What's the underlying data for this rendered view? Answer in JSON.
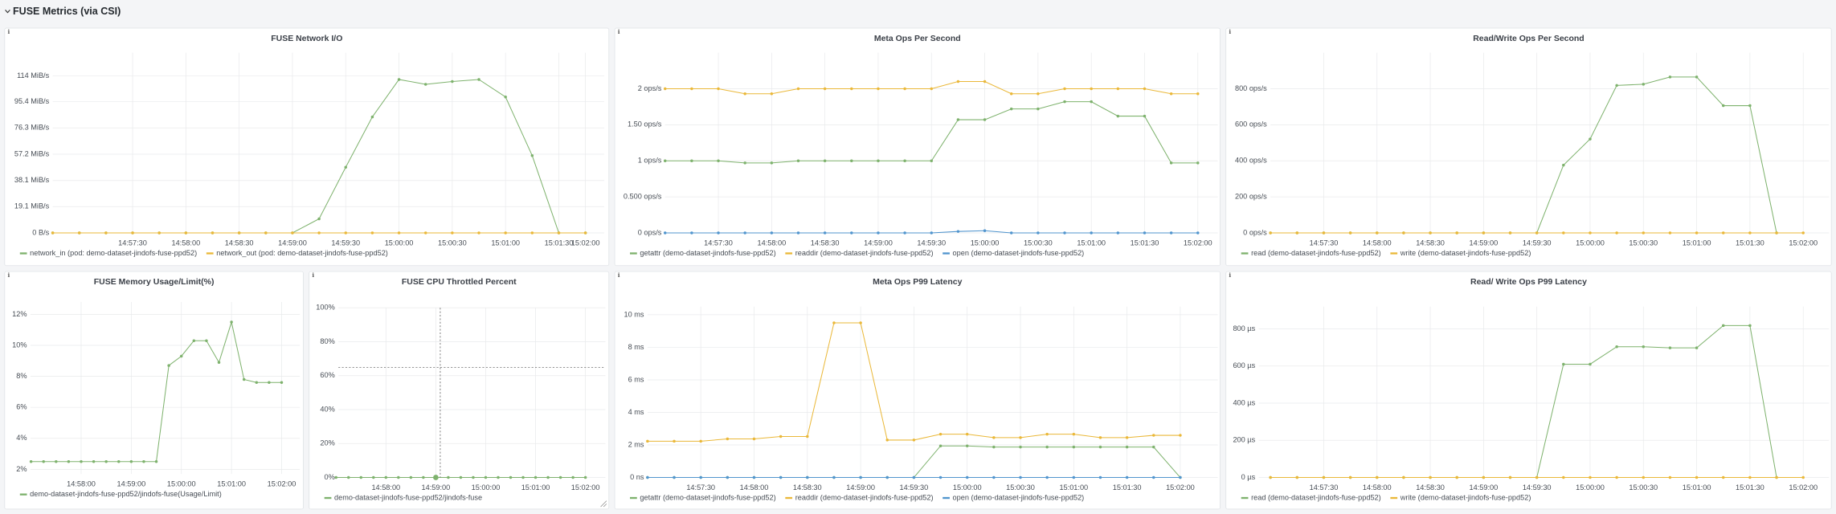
{
  "header": {
    "title": "FUSE Metrics (via CSI)"
  },
  "chart_data": [
    {
      "type": "line",
      "title": "FUSE Network I/O",
      "categories": [
        null,
        null,
        null,
        "14:57:30",
        null,
        "14:58:00",
        null,
        "14:58:30",
        null,
        "14:59:00",
        null,
        "14:59:30",
        null,
        "15:00:00",
        null,
        "15:00:30",
        null,
        "15:01:00",
        null,
        "15:01:30",
        "15:02:00"
      ],
      "ylim": [
        0,
        131
      ],
      "yticks": [
        {
          "value": 0,
          "label": "0 B/s"
        },
        {
          "value": 19.1,
          "label": "19.1 MiB/s"
        },
        {
          "value": 38.1,
          "label": "38.1 MiB/s"
        },
        {
          "value": 57.2,
          "label": "57.2 MiB/s"
        },
        {
          "value": 76.3,
          "label": "76.3 MiB/s"
        },
        {
          "value": 95.4,
          "label": "95.4 MiB/s"
        },
        {
          "value": 114,
          "label": "114 MiB/s"
        }
      ],
      "grid": true,
      "series": [
        {
          "name": "network_in (pod: demo-dataset-jindofs-fuse-ppd52)",
          "color": "#7eb26d",
          "values": [
            0,
            0,
            0,
            0,
            0,
            0,
            0,
            0,
            0,
            0,
            10.2,
            47.7,
            84.3,
            111.5,
            108,
            110,
            111.5,
            98.8,
            56.2,
            0,
            0
          ]
        },
        {
          "name": "network_out (pod: demo-dataset-jindofs-fuse-ppd52)",
          "color": "#eab839",
          "values": [
            0,
            0,
            0,
            0,
            0,
            0,
            0,
            0,
            0,
            0,
            0,
            0,
            0,
            0,
            0,
            0,
            0,
            0,
            0,
            0,
            0
          ]
        }
      ]
    },
    {
      "type": "line",
      "title": "Meta Ops Per Second",
      "categories": [
        null,
        null,
        "14:57:30",
        null,
        "14:58:00",
        null,
        "14:58:30",
        null,
        "14:59:00",
        null,
        "14:59:30",
        null,
        "15:00:00",
        null,
        "15:00:30",
        null,
        "15:01:00",
        null,
        "15:01:30",
        null,
        "15:02:00"
      ],
      "ylim": [
        0,
        2.5
      ],
      "yticks": [
        {
          "value": 0,
          "label": "0 ops/s"
        },
        {
          "value": 0.5,
          "label": "0.500 ops/s"
        },
        {
          "value": 1,
          "label": "1 ops/s"
        },
        {
          "value": 1.5,
          "label": "1.50 ops/s"
        },
        {
          "value": 2,
          "label": "2 ops/s"
        }
      ],
      "grid": true,
      "series": [
        {
          "name": "getattr (demo-dataset-jindofs-fuse-ppd52)",
          "color": "#7eb26d",
          "values": [
            1,
            1,
            1,
            0.97,
            0.97,
            1,
            1,
            1,
            1,
            1,
            1,
            1.57,
            1.57,
            1.72,
            1.72,
            1.82,
            1.82,
            1.62,
            1.62,
            0.97,
            0.97
          ]
        },
        {
          "name": "readdir (demo-dataset-jindofs-fuse-ppd52)",
          "color": "#eab839",
          "values": [
            2,
            2,
            2,
            1.93,
            1.93,
            2,
            2,
            2,
            2,
            2,
            2,
            2.1,
            2.1,
            1.93,
            1.93,
            2,
            2,
            2,
            2,
            1.93,
            1.93
          ]
        },
        {
          "name": "open (demo-dataset-jindofs-fuse-ppd52)",
          "color": "#5195ce",
          "values": [
            0,
            0,
            0,
            0,
            0,
            0,
            0,
            0,
            0,
            0,
            0,
            0.02,
            0.03,
            0,
            0,
            0,
            0,
            0,
            0,
            0,
            0
          ]
        }
      ]
    },
    {
      "type": "line",
      "title": "Read/Write Ops Per Second",
      "categories": [
        null,
        null,
        "14:57:30",
        null,
        "14:58:00",
        null,
        "14:58:30",
        null,
        "14:59:00",
        null,
        "14:59:30",
        null,
        "15:00:00",
        null,
        "15:00:30",
        null,
        "15:01:00",
        null,
        "15:01:30",
        null,
        "15:02:00"
      ],
      "ylim": [
        0,
        1000
      ],
      "yticks": [
        {
          "value": 0,
          "label": "0 ops/s"
        },
        {
          "value": 200,
          "label": "200 ops/s"
        },
        {
          "value": 400,
          "label": "400 ops/s"
        },
        {
          "value": 600,
          "label": "600 ops/s"
        },
        {
          "value": 800,
          "label": "800 ops/s"
        }
      ],
      "grid": true,
      "series": [
        {
          "name": "read (demo-dataset-jindofs-fuse-ppd52)",
          "color": "#7eb26d",
          "values": [
            0,
            0,
            0,
            0,
            0,
            0,
            0,
            0,
            0,
            0,
            0,
            376,
            521,
            818,
            825,
            865,
            865,
            706,
            706,
            0,
            null
          ]
        },
        {
          "name": "write (demo-dataset-jindofs-fuse-ppd52)",
          "color": "#eab839",
          "values": [
            0,
            0,
            0,
            0,
            0,
            0,
            0,
            0,
            0,
            0,
            0,
            0,
            0,
            0,
            0,
            0,
            0,
            0,
            0,
            0,
            0
          ]
        }
      ]
    },
    {
      "type": "line",
      "title": "FUSE Memory Usage/Limit(%)",
      "categories": [
        null,
        null,
        null,
        null,
        "14:58:00",
        null,
        null,
        null,
        "14:59:00",
        null,
        null,
        null,
        "15:00:00",
        null,
        null,
        null,
        "15:01:00",
        null,
        null,
        null,
        "15:02:00"
      ],
      "ylim": [
        1.7,
        12.8
      ],
      "yticks": [
        {
          "value": 2,
          "label": "2%"
        },
        {
          "value": 4,
          "label": "4%"
        },
        {
          "value": 6,
          "label": "6%"
        },
        {
          "value": 8,
          "label": "8%"
        },
        {
          "value": 10,
          "label": "10%"
        },
        {
          "value": 12,
          "label": "12%"
        }
      ],
      "grid": true,
      "series": [
        {
          "name": "demo-dataset-jindofs-fuse-ppd52/jindofs-fuse(Usage/Limit)",
          "color": "#7eb26d",
          "values": [
            2.5,
            2.5,
            2.5,
            2.5,
            2.5,
            2.5,
            2.5,
            2.5,
            2.5,
            2.5,
            2.5,
            8.7,
            9.3,
            10.3,
            10.3,
            8.9,
            11.5,
            7.8,
            7.6,
            7.6,
            7.6
          ]
        }
      ]
    },
    {
      "type": "line",
      "title": "FUSE CPU Throttled Percent",
      "categories": [
        null,
        null,
        null,
        null,
        "14:58:00",
        null,
        null,
        null,
        "14:59:00",
        null,
        null,
        null,
        "15:00:00",
        null,
        null,
        null,
        "15:01:00",
        null,
        null,
        null,
        "15:02:00"
      ],
      "ylim": [
        0,
        100
      ],
      "yticks": [
        {
          "value": 0,
          "label": "0%"
        },
        {
          "value": 20,
          "label": "20%"
        },
        {
          "value": 40,
          "label": "40%"
        },
        {
          "value": 60,
          "label": "60%"
        },
        {
          "value": 80,
          "label": "80%"
        },
        {
          "value": 100,
          "label": "100%"
        }
      ],
      "grid": true,
      "series": [
        {
          "name": "demo-dataset-jindofs-fuse-ppd52/jindofs-fuse",
          "color": "#7eb26d",
          "values": [
            0,
            0,
            0,
            0,
            0,
            0,
            0,
            0,
            0,
            0,
            0,
            0,
            0,
            0,
            0,
            0,
            0,
            0,
            0,
            0,
            0
          ]
        }
      ]
    },
    {
      "type": "line",
      "title": "Meta Ops P99 Latency",
      "categories": [
        null,
        null,
        "14:57:30",
        null,
        "14:58:00",
        null,
        "14:58:30",
        null,
        "14:59:00",
        null,
        "14:59:30",
        null,
        "15:00:00",
        null,
        "15:00:30",
        null,
        "15:01:00",
        null,
        "15:01:30",
        null,
        "15:02:00"
      ],
      "ylim": [
        0,
        10.5
      ],
      "yticks": [
        {
          "value": 0,
          "label": "0 ns"
        },
        {
          "value": 2,
          "label": "2 ms"
        },
        {
          "value": 4,
          "label": "4 ms"
        },
        {
          "value": 6,
          "label": "6 ms"
        },
        {
          "value": 8,
          "label": "8 ms"
        },
        {
          "value": 10,
          "label": "10 ms"
        }
      ],
      "grid": true,
      "series": [
        {
          "name": "getattr (demo-dataset-jindofs-fuse-ppd52)",
          "color": "#7eb26d",
          "values": [
            0,
            0,
            0,
            0,
            0,
            0,
            0,
            0,
            0,
            0,
            0,
            1.94,
            1.94,
            1.87,
            1.87,
            1.87,
            1.87,
            1.87,
            1.87,
            1.87,
            0
          ]
        },
        {
          "name": "readdir (demo-dataset-jindofs-fuse-ppd52)",
          "color": "#eab839",
          "values": [
            2.23,
            2.23,
            2.23,
            2.37,
            2.37,
            2.52,
            2.52,
            9.5,
            9.5,
            2.3,
            2.3,
            2.66,
            2.66,
            2.45,
            2.45,
            2.66,
            2.66,
            2.45,
            2.45,
            2.59,
            2.59
          ]
        },
        {
          "name": "open (demo-dataset-jindofs-fuse-ppd52)",
          "color": "#5195ce",
          "values": [
            0,
            0,
            0,
            0,
            0,
            0,
            0,
            0,
            0,
            0,
            0,
            0,
            0,
            0,
            0,
            0,
            0,
            0,
            0,
            0,
            0
          ]
        }
      ]
    },
    {
      "type": "line",
      "title": "Read/ Write Ops P99 Latency",
      "categories": [
        null,
        null,
        "14:57:30",
        null,
        "14:58:00",
        null,
        "14:58:30",
        null,
        "14:59:00",
        null,
        "14:59:30",
        null,
        "15:00:00",
        null,
        "15:00:30",
        null,
        "15:01:00",
        null,
        "15:01:30",
        null,
        "15:02:00"
      ],
      "ylim": [
        0,
        920
      ],
      "yticks": [
        {
          "value": 0,
          "label": "0 µs"
        },
        {
          "value": 200,
          "label": "200 µs"
        },
        {
          "value": 400,
          "label": "400 µs"
        },
        {
          "value": 600,
          "label": "600 µs"
        },
        {
          "value": 800,
          "label": "800 µs"
        }
      ],
      "grid": true,
      "series": [
        {
          "name": "read (demo-dataset-jindofs-fuse-ppd52)",
          "color": "#7eb26d",
          "values": [
            0,
            0,
            0,
            0,
            0,
            0,
            0,
            0,
            0,
            0,
            0,
            610,
            610,
            704,
            704,
            698,
            698,
            818,
            818,
            0,
            null
          ]
        },
        {
          "name": "write (demo-dataset-jindofs-fuse-ppd52)",
          "color": "#eab839",
          "values": [
            0,
            0,
            0,
            0,
            0,
            0,
            0,
            0,
            0,
            0,
            0,
            0,
            0,
            0,
            0,
            0,
            0,
            0,
            0,
            0,
            0
          ]
        }
      ]
    }
  ]
}
